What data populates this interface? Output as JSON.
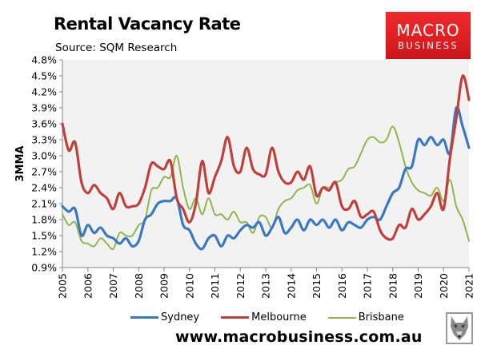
{
  "header": {
    "title": "Rental Vacancy Rate",
    "subtitle": "Source: SQM Research"
  },
  "logo": {
    "line1": "MACRO",
    "line2": "BUSINESS",
    "color": "#e8201f"
  },
  "footer": {
    "url": "www.macrobusiness.com.au"
  },
  "colors": {
    "sydney": "#3b78c2",
    "melbourne": "#c0403c",
    "brisbane": "#8fb84a",
    "plot_bg": "#f2f2f2"
  },
  "chart_data": {
    "type": "line",
    "title": "Rental Vacancy Rate",
    "subtitle": "Source: SQM Research",
    "xlabel": "",
    "ylabel": "3MMA",
    "ylim": [
      0.9,
      4.8
    ],
    "yticks": [
      "0.9%",
      "1.2%",
      "1.5%",
      "1.8%",
      "2.1%",
      "2.4%",
      "2.7%",
      "3.0%",
      "3.3%",
      "3.6%",
      "3.9%",
      "4.2%",
      "4.5%",
      "4.8%"
    ],
    "xlim": [
      2005,
      2021
    ],
    "xticks": [
      "2005",
      "2006",
      "2007",
      "2008",
      "2009",
      "2010",
      "2011",
      "2012",
      "2013",
      "2014",
      "2015",
      "2016",
      "2017",
      "2018",
      "2019",
      "2020",
      "2021"
    ],
    "grid": false,
    "legend_position": "bottom",
    "x": [
      2005.0,
      2005.25,
      2005.5,
      2005.75,
      2006.0,
      2006.25,
      2006.5,
      2006.75,
      2007.0,
      2007.25,
      2007.5,
      2007.75,
      2008.0,
      2008.25,
      2008.5,
      2008.75,
      2009.0,
      2009.25,
      2009.5,
      2009.75,
      2010.0,
      2010.25,
      2010.5,
      2010.75,
      2011.0,
      2011.25,
      2011.5,
      2011.75,
      2012.0,
      2012.25,
      2012.5,
      2012.75,
      2013.0,
      2013.25,
      2013.5,
      2013.75,
      2014.0,
      2014.25,
      2014.5,
      2014.75,
      2015.0,
      2015.25,
      2015.5,
      2015.75,
      2016.0,
      2016.25,
      2016.5,
      2016.75,
      2017.0,
      2017.25,
      2017.5,
      2017.75,
      2018.0,
      2018.25,
      2018.5,
      2018.75,
      2019.0,
      2019.25,
      2019.5,
      2019.75,
      2020.0,
      2020.25,
      2020.5,
      2020.75,
      2021.0
    ],
    "series": [
      {
        "name": "Sydney",
        "color": "#3b78c2",
        "values": [
          2.05,
          1.95,
          2.0,
          1.5,
          1.7,
          1.55,
          1.65,
          1.5,
          1.45,
          1.35,
          1.45,
          1.3,
          1.4,
          1.8,
          1.9,
          2.1,
          2.15,
          2.15,
          2.2,
          1.7,
          1.6,
          1.35,
          1.25,
          1.45,
          1.5,
          1.3,
          1.5,
          1.45,
          1.6,
          1.7,
          1.65,
          1.75,
          1.5,
          1.65,
          1.85,
          1.55,
          1.65,
          1.8,
          1.6,
          1.8,
          1.7,
          1.8,
          1.65,
          1.8,
          1.6,
          1.75,
          1.7,
          1.65,
          1.8,
          1.85,
          1.8,
          2.05,
          2.3,
          2.4,
          2.75,
          2.8,
          3.3,
          3.2,
          3.35,
          3.2,
          3.3,
          3.05,
          3.9,
          3.55,
          3.15
        ]
      },
      {
        "name": "Melbourne",
        "color": "#c0403c",
        "values": [
          3.6,
          3.1,
          3.25,
          2.5,
          2.3,
          2.45,
          2.3,
          2.2,
          2.0,
          2.3,
          2.05,
          2.05,
          2.1,
          2.4,
          2.85,
          2.8,
          2.75,
          2.9,
          2.2,
          2.0,
          1.75,
          2.1,
          2.9,
          2.3,
          2.6,
          2.9,
          3.35,
          2.8,
          2.7,
          3.15,
          2.75,
          2.65,
          2.65,
          3.15,
          2.7,
          2.5,
          2.5,
          2.7,
          2.55,
          2.8,
          2.25,
          2.4,
          2.35,
          2.5,
          2.05,
          2.0,
          2.15,
          1.85,
          1.9,
          1.95,
          1.6,
          1.45,
          1.45,
          1.7,
          1.65,
          2.0,
          1.8,
          1.9,
          2.05,
          2.3,
          2.0,
          2.95,
          3.7,
          4.5,
          4.05
        ]
      },
      {
        "name": "Brisbane",
        "color": "#8fb84a",
        "values": [
          1.9,
          1.7,
          1.75,
          1.4,
          1.35,
          1.3,
          1.45,
          1.35,
          1.25,
          1.55,
          1.5,
          1.5,
          1.7,
          1.8,
          2.35,
          2.4,
          2.6,
          2.6,
          3.0,
          2.4,
          2.0,
          2.2,
          1.9,
          2.2,
          1.9,
          1.9,
          1.8,
          1.95,
          1.75,
          1.75,
          1.55,
          1.85,
          1.85,
          1.65,
          2.0,
          2.15,
          2.2,
          2.35,
          2.4,
          2.45,
          2.1,
          2.4,
          2.4,
          2.5,
          2.55,
          2.75,
          2.8,
          3.05,
          3.3,
          3.35,
          3.25,
          3.3,
          3.55,
          3.25,
          2.8,
          2.5,
          2.35,
          2.3,
          2.25,
          2.4,
          2.15,
          2.55,
          2.05,
          1.8,
          1.4
        ]
      }
    ]
  },
  "legend": {
    "items": [
      {
        "label": "Sydney",
        "color": "#3b78c2"
      },
      {
        "label": "Melbourne",
        "color": "#c0403c"
      },
      {
        "label": "Brisbane",
        "color": "#8fb84a"
      }
    ]
  }
}
